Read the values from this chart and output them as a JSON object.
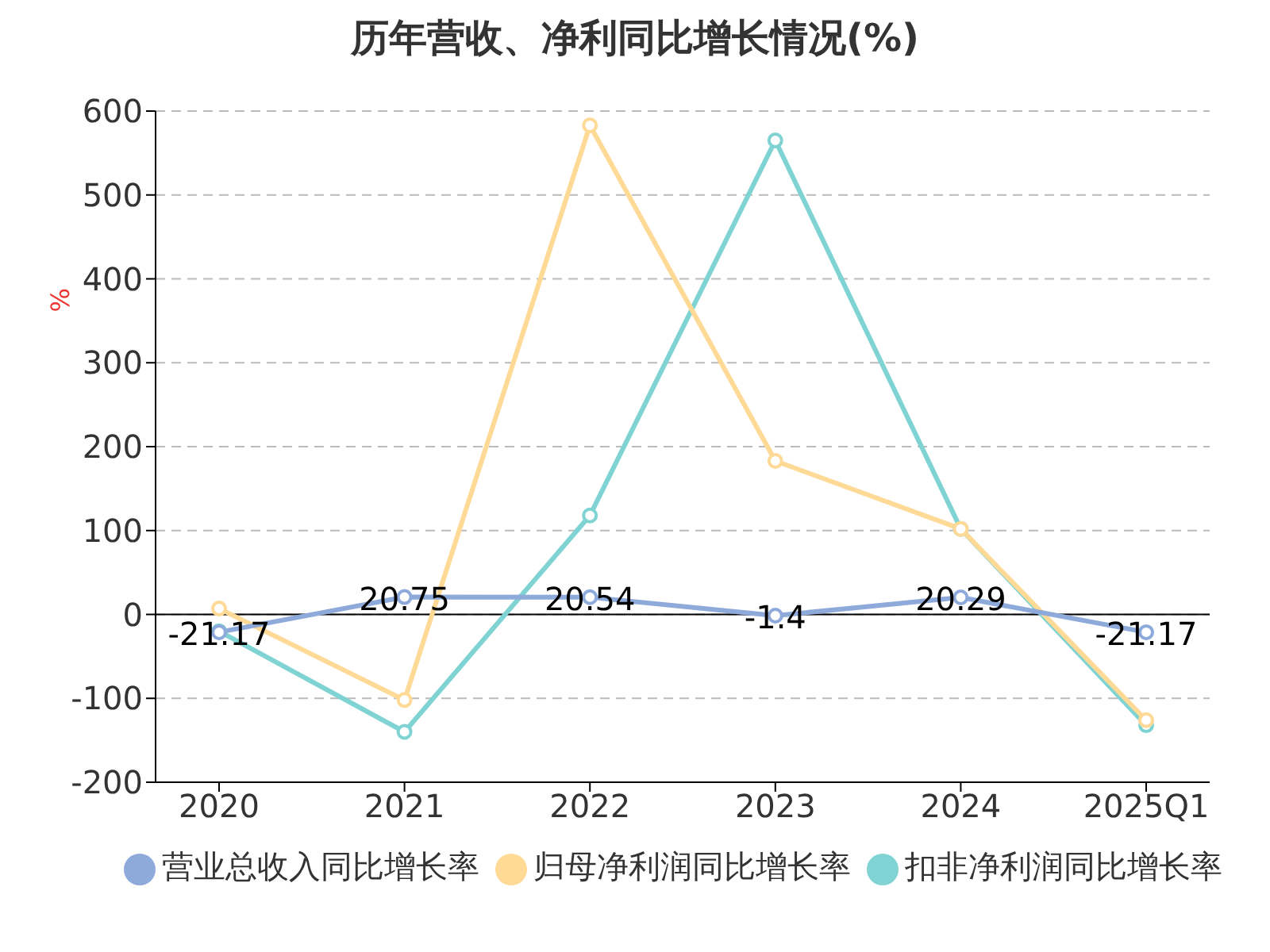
{
  "chart_data": {
    "type": "line",
    "title": "历年营收、净利同比增长情况(%)",
    "ylabel": "%",
    "categories": [
      "2020",
      "2021",
      "2022",
      "2023",
      "2024",
      "2025Q1"
    ],
    "series": [
      {
        "name": "营业总收入同比增长率",
        "color": "#8eaadb",
        "values": [
          -21.17,
          20.75,
          20.54,
          -1.4,
          20.29,
          -21.17
        ],
        "value_labels": [
          "-21.17",
          "20.75",
          "20.54",
          "-1.4",
          "20.29",
          "-21.17"
        ]
      },
      {
        "name": "归母净利润同比增长率",
        "color": "#ffd996",
        "values": [
          7,
          -102,
          583,
          183,
          102,
          -126
        ]
      },
      {
        "name": "扣非净利润同比增长率",
        "color": "#7fd3d3",
        "values": [
          -20,
          -140,
          118,
          565,
          102,
          -132
        ]
      }
    ],
    "ylim": [
      -200,
      600
    ],
    "yticks": [
      -200,
      -100,
      0,
      100,
      200,
      300,
      400,
      500,
      600
    ],
    "grid": "y",
    "legend": "bottom",
    "marker": "circle",
    "line_style": "solid"
  }
}
